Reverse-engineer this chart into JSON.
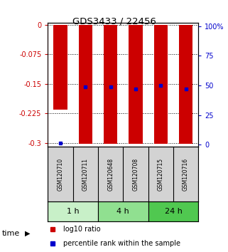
{
  "title": "GDS3433 / 22456",
  "samples": [
    "GSM120710",
    "GSM120711",
    "GSM120648",
    "GSM120708",
    "GSM120715",
    "GSM120716"
  ],
  "log10_ratio": [
    -0.215,
    -0.302,
    -0.302,
    -0.302,
    -0.302,
    -0.302
  ],
  "percentile_rank": [
    1.0,
    49.0,
    49.0,
    47.0,
    50.0,
    47.0
  ],
  "time_groups": [
    {
      "label": "1 h",
      "start": 0,
      "end": 2,
      "color": "#c8f0c8"
    },
    {
      "label": "4 h",
      "start": 2,
      "end": 4,
      "color": "#90e090"
    },
    {
      "label": "24 h",
      "start": 4,
      "end": 6,
      "color": "#50c850"
    }
  ],
  "ylim_left": [
    -0.31,
    0.005
  ],
  "ylim_right": [
    -2.0,
    103.0
  ],
  "yticks_left": [
    0,
    -0.075,
    -0.15,
    -0.225,
    -0.3
  ],
  "ytick_labels_left": [
    "0",
    "-0.075",
    "-0.15",
    "-0.225",
    "-0.3"
  ],
  "yticks_right_vals": [
    0,
    25,
    50,
    75,
    100
  ],
  "ytick_labels_right": [
    "0",
    "25",
    "50",
    "75",
    "100%"
  ],
  "bar_color": "#cc0000",
  "dot_color": "#0000cc",
  "bar_width": 0.55,
  "background_color": "#ffffff",
  "plot_bg": "#ffffff",
  "legend_log10": "log10 ratio",
  "legend_pct": "percentile rank within the sample",
  "time_label": "time",
  "left_axis_color": "#cc0000",
  "right_axis_color": "#0000cc"
}
